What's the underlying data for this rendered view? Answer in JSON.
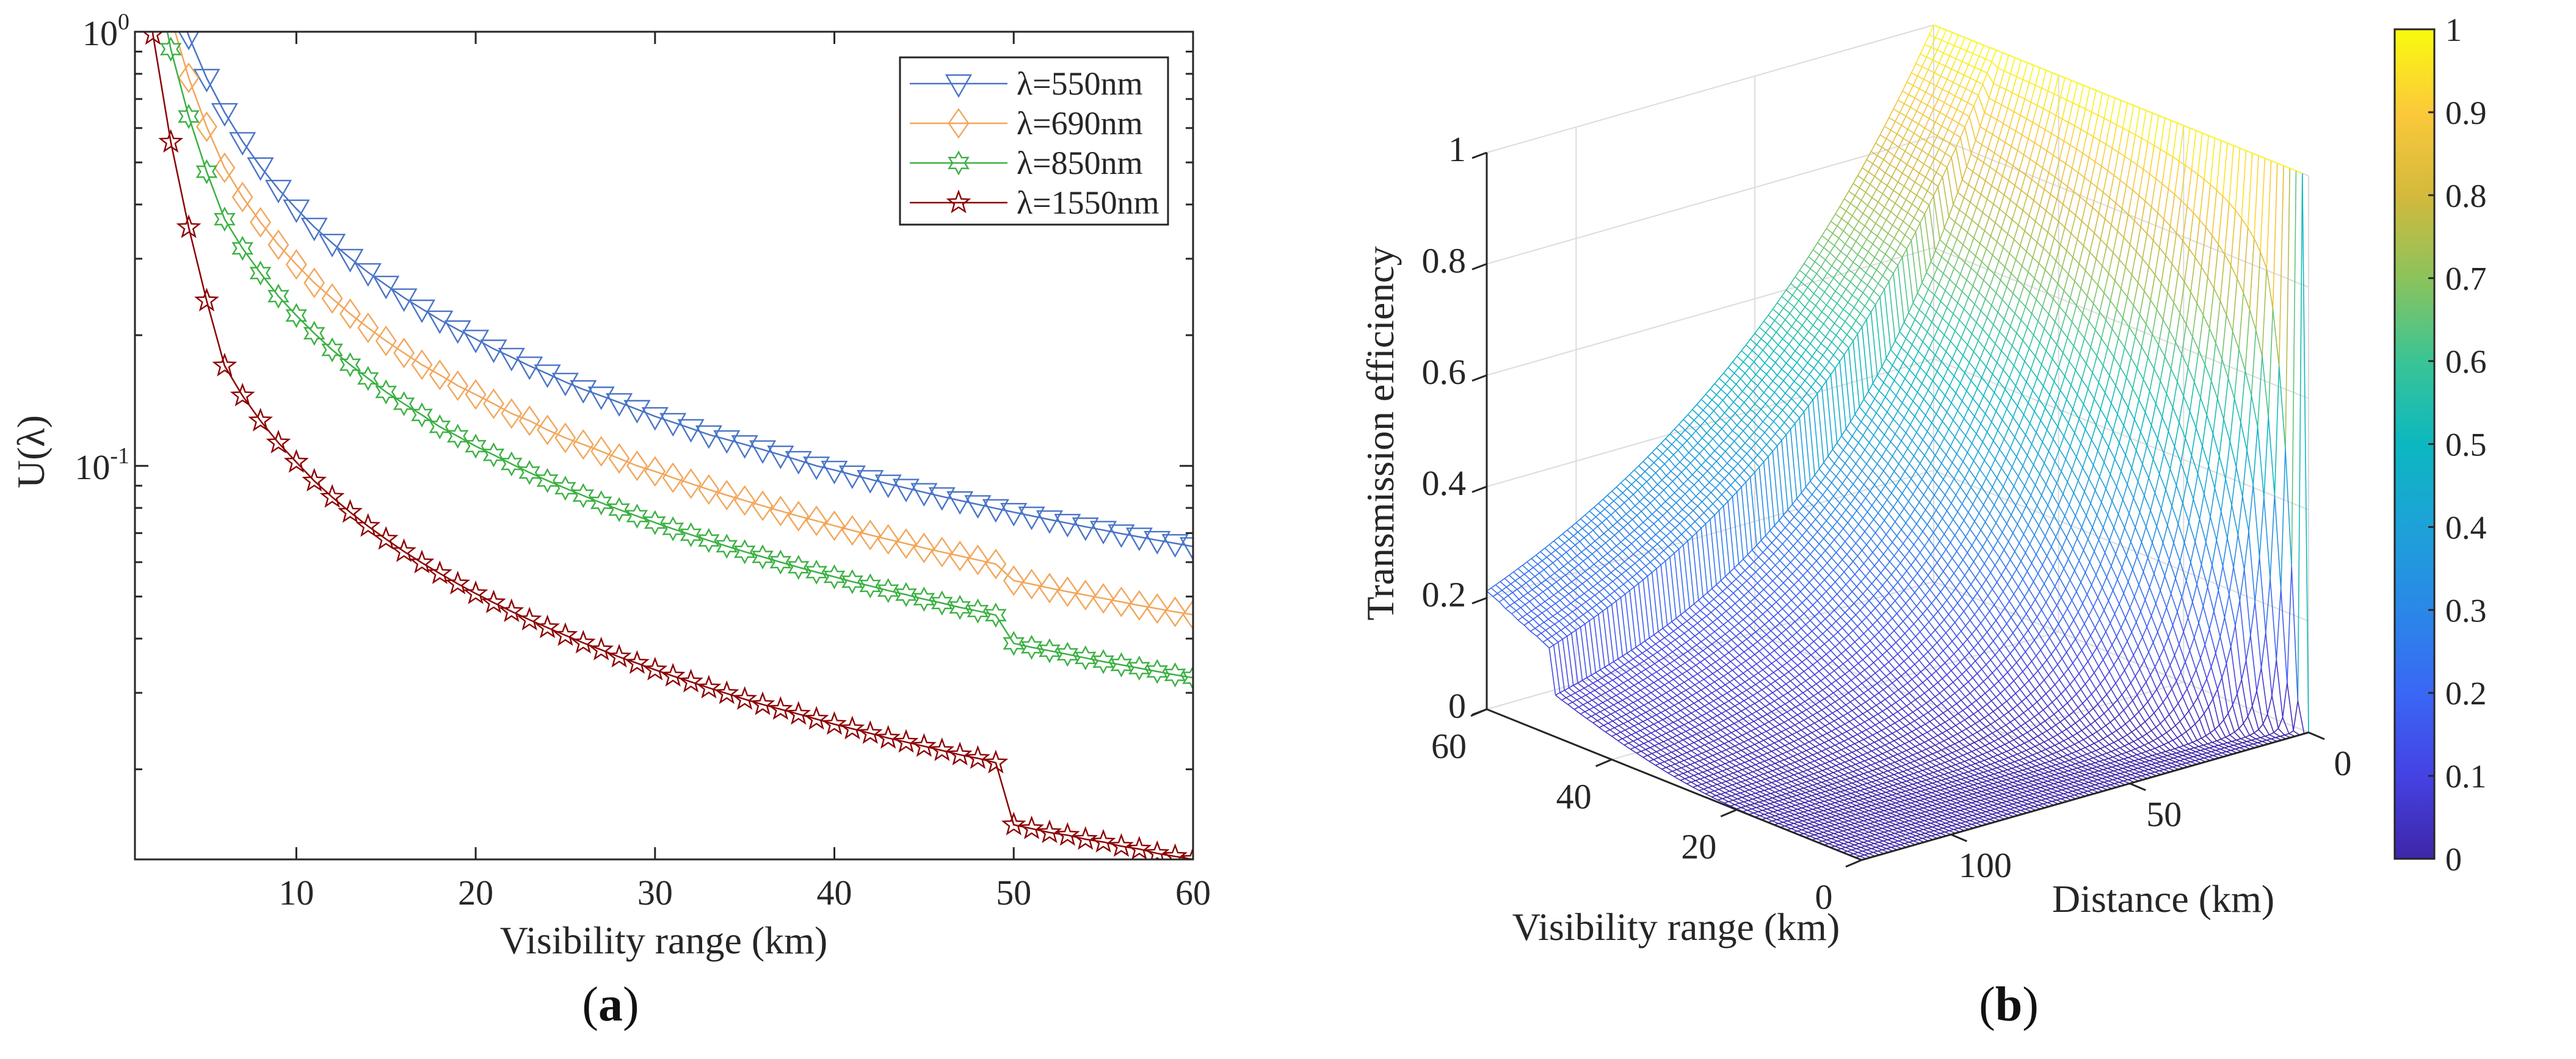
{
  "captions": {
    "a": {
      "open": "(",
      "letter": "a",
      "close": ")"
    },
    "b": {
      "open": "(",
      "letter": "b",
      "close": ")"
    }
  },
  "chart_data": [
    {
      "type": "line",
      "title": "",
      "xlabel": "Visibility range (km)",
      "ylabel": "U(λ)",
      "yscale": "log",
      "xlim": [
        1,
        60
      ],
      "ylim": [
        0.0124,
        1
      ],
      "grid": false,
      "xticks": [
        10,
        20,
        30,
        40,
        50,
        60
      ],
      "xtick_labels": [
        "10",
        "20",
        "30",
        "40",
        "50",
        "60"
      ],
      "yticks": [
        1,
        0.1
      ],
      "ytick_labels": [
        {
          "base": "10",
          "exp": "0"
        },
        {
          "base": "10",
          "exp": "-1"
        }
      ],
      "legend_location": "top-right",
      "series": [
        {
          "name": "λ=550nm",
          "color": "#4a74c6",
          "marker": "triangle-down",
          "x_start": 3,
          "values": [
            1.303,
            0.978,
            0.782,
            0.652,
            0.559,
            0.489,
            0.434,
            0.391,
            0.355,
            0.326,
            0.301,
            0.279,
            0.261,
            0.244,
            0.23,
            0.217,
            0.206,
            0.196,
            0.186,
            0.178,
            0.17,
            0.163,
            0.156,
            0.15,
            0.145,
            0.14,
            0.135,
            0.13,
            0.126,
            0.122,
            0.118,
            0.115,
            0.112,
            0.109,
            0.106,
            0.103,
            0.1,
            0.0978,
            0.0954,
            0.0931,
            0.0909,
            0.0889,
            0.0869,
            0.085,
            0.0832,
            0.0815,
            0.0798,
            0.0782,
            0.0767,
            0.0752,
            0.0738,
            0.0724,
            0.0711,
            0.0698,
            0.0686,
            0.0674,
            0.0663,
            0.0652
          ]
        },
        {
          "name": "λ=690nm",
          "color": "#f2a65a",
          "marker": "diamond",
          "x_start": 3,
          "values": [
            1.08,
            0.783,
            0.604,
            0.486,
            0.416,
            0.364,
            0.323,
            0.291,
            0.264,
            0.243,
            0.224,
            0.208,
            0.194,
            0.182,
            0.171,
            0.162,
            0.153,
            0.146,
            0.139,
            0.132,
            0.127,
            0.121,
            0.116,
            0.112,
            0.108,
            0.104,
            0.1,
            0.0971,
            0.0939,
            0.091,
            0.0882,
            0.0856,
            0.0832,
            0.0809,
            0.0787,
            0.0766,
            0.0747,
            0.0728,
            0.071,
            0.0693,
            0.0677,
            0.0662,
            0.0647,
            0.0633,
            0.062,
            0.0607,
            0.0594,
            0.0544,
            0.0534,
            0.0523,
            0.0513,
            0.0504,
            0.0495,
            0.0486,
            0.0477,
            0.0469,
            0.0461,
            0.0454
          ]
        },
        {
          "name": "λ=850nm",
          "color": "#3cb043",
          "marker": "hexagram",
          "x_start": 2,
          "values": [
            1.47,
            0.912,
            0.638,
            0.476,
            0.37,
            0.317,
            0.278,
            0.246,
            0.222,
            0.202,
            0.185,
            0.171,
            0.159,
            0.148,
            0.139,
            0.131,
            0.123,
            0.117,
            0.111,
            0.106,
            0.101,
            0.0965,
            0.0925,
            0.0888,
            0.0854,
            0.0822,
            0.0793,
            0.0766,
            0.074,
            0.0716,
            0.0694,
            0.0673,
            0.0653,
            0.0634,
            0.0617,
            0.06,
            0.0584,
            0.0569,
            0.0555,
            0.0541,
            0.0529,
            0.0516,
            0.0505,
            0.0493,
            0.0483,
            0.0472,
            0.0463,
            0.0453,
            0.039,
            0.0382,
            0.0375,
            0.0368,
            0.0361,
            0.0354,
            0.0348,
            0.0342,
            0.0336,
            0.033,
            0.0325
          ]
        },
        {
          "name": "λ=1550nm",
          "color": "#8b0000",
          "marker": "pentagram",
          "x_start": 1,
          "values": [
            2.33,
            0.987,
            0.557,
            0.354,
            0.24,
            0.17,
            0.145,
            0.127,
            0.113,
            0.102,
            0.0923,
            0.0847,
            0.0782,
            0.0726,
            0.0678,
            0.0635,
            0.0598,
            0.0565,
            0.0535,
            0.0508,
            0.0484,
            0.0462,
            0.0442,
            0.0424,
            0.0407,
            0.0391,
            0.0377,
            0.0363,
            0.0351,
            0.0339,
            0.0328,
            0.0318,
            0.0308,
            0.0299,
            0.029,
            0.0282,
            0.0275,
            0.0268,
            0.0261,
            0.0254,
            0.0248,
            0.0242,
            0.0236,
            0.0231,
            0.0226,
            0.0221,
            0.0216,
            0.0212,
            0.0207,
            0.0149,
            0.0146,
            0.0143,
            0.0141,
            0.0138,
            0.0136,
            0.0133,
            0.0131,
            0.0128,
            0.0126,
            0.0124
          ]
        }
      ]
    },
    {
      "type": "surface",
      "title": "",
      "xlabel": "Distance (km)",
      "ylabel": "Visibility range (km)",
      "zlabel": "Transmission efficiency",
      "xlim": [
        0,
        125
      ],
      "ylim": [
        0,
        60
      ],
      "zlim": [
        0,
        1
      ],
      "z_source_series": "λ=1550nm",
      "distance_step_km": 1.25,
      "visibility_step_km": 1,
      "xticks": [
        0,
        50,
        100
      ],
      "xtick_labels": [
        "0",
        "50",
        "100"
      ],
      "yticks": [
        0,
        20,
        40,
        60
      ],
      "ytick_labels": [
        "0",
        "20",
        "40",
        "60"
      ],
      "zticks": [
        0,
        0.2,
        0.4,
        0.6,
        0.8,
        1
      ],
      "ztick_labels": [
        "0",
        "0.2",
        "0.4",
        "0.6",
        "0.8",
        "1"
      ],
      "grid": true,
      "colorbar": {
        "range": [
          0,
          1
        ],
        "ticks": [
          0,
          0.1,
          0.2,
          0.3,
          0.4,
          0.5,
          0.6,
          0.7,
          0.8,
          0.9,
          1
        ],
        "tick_labels": [
          "0",
          "0.1",
          "0.2",
          "0.3",
          "0.4",
          "0.5",
          "0.6",
          "0.7",
          "0.8",
          "0.9",
          "1"
        ],
        "colormap": [
          "#3e26a8",
          "#4542e3",
          "#3a67f5",
          "#2a88e8",
          "#1da2d8",
          "#0cb8c0",
          "#3ac495",
          "#8cc35c",
          "#d4b93c",
          "#fbc93a",
          "#f9fb0e"
        ]
      }
    }
  ]
}
